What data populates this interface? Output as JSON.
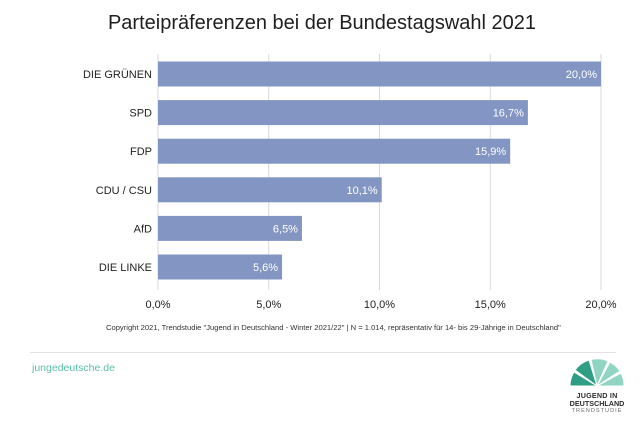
{
  "colors": {
    "bar": "#8395C3",
    "grid": "#d9d9d9",
    "accent": "#5bbfa6",
    "logo_dark": "#2f9e85",
    "logo_light": "#8fd5c2"
  },
  "footer": {
    "website": "jungedeutsche.de",
    "logo_line1": "JUGEND IN",
    "logo_line2": "DEUTSCHLAND",
    "logo_line3": "TRENDSTUDIE"
  },
  "chart_data": {
    "type": "bar",
    "orientation": "horizontal",
    "title": "Parteipräferenzen bei der Bundestagswahl 2021",
    "categories": [
      "DIE GRÜNEN",
      "SPD",
      "FDP",
      "CDU / CSU",
      "AfD",
      "DIE LINKE"
    ],
    "values": [
      20.0,
      16.7,
      15.9,
      10.1,
      6.5,
      5.6
    ],
    "value_labels": [
      "20,0%",
      "16,7%",
      "15,9%",
      "10,1%",
      "6,5%",
      "5,6%"
    ],
    "xlim": [
      0,
      20
    ],
    "xticks": [
      0,
      5,
      10,
      15,
      20
    ],
    "xtick_labels": [
      "0,0%",
      "5,0%",
      "10,0%",
      "15,0%",
      "20,0%"
    ],
    "xlabel": "",
    "ylabel": "",
    "grid": "vertical",
    "legend": "none",
    "footnote": "Copyright 2021, Trendstudie \"Jugend in Deutschland - Winter 2021/22\" | N = 1.014, repräsentativ für 14- bis 29-Jährige in Deutschland\""
  }
}
